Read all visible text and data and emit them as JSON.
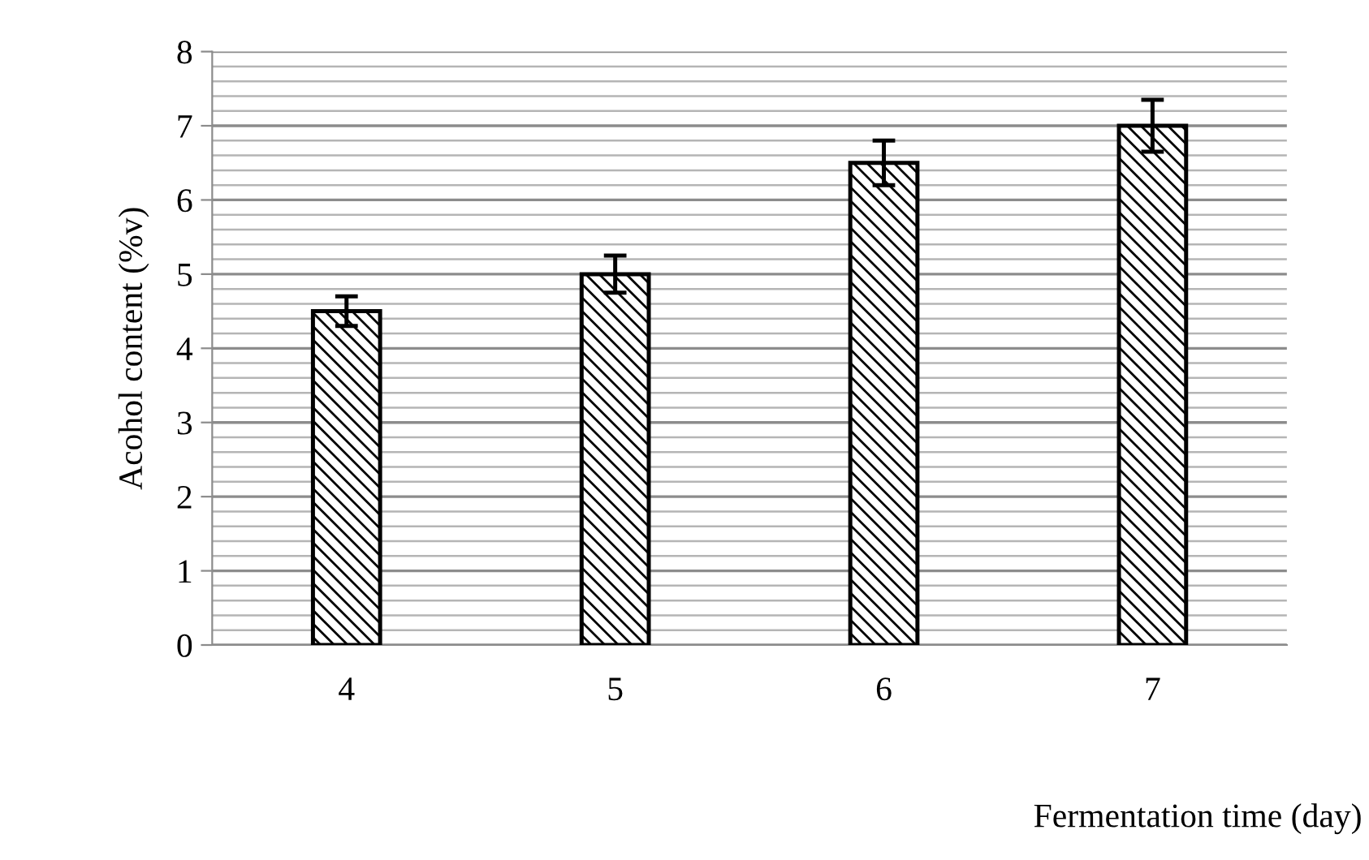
{
  "chart_data": {
    "type": "bar",
    "xlabel": "Fermentation time (day)",
    "ylabel": "Acohol content (%v)",
    "categories": [
      "4",
      "5",
      "6",
      "7"
    ],
    "series": [
      {
        "color": "#000000",
        "values": [
          4.5,
          5.0,
          6.5,
          7.0
        ],
        "errors": [
          0.2,
          0.25,
          0.3,
          0.35
        ]
      }
    ],
    "ylim": [
      0,
      8
    ],
    "yticks": [
      0,
      1,
      2,
      3,
      4,
      5,
      6,
      7,
      8
    ],
    "grid": "y",
    "legend": false
  }
}
